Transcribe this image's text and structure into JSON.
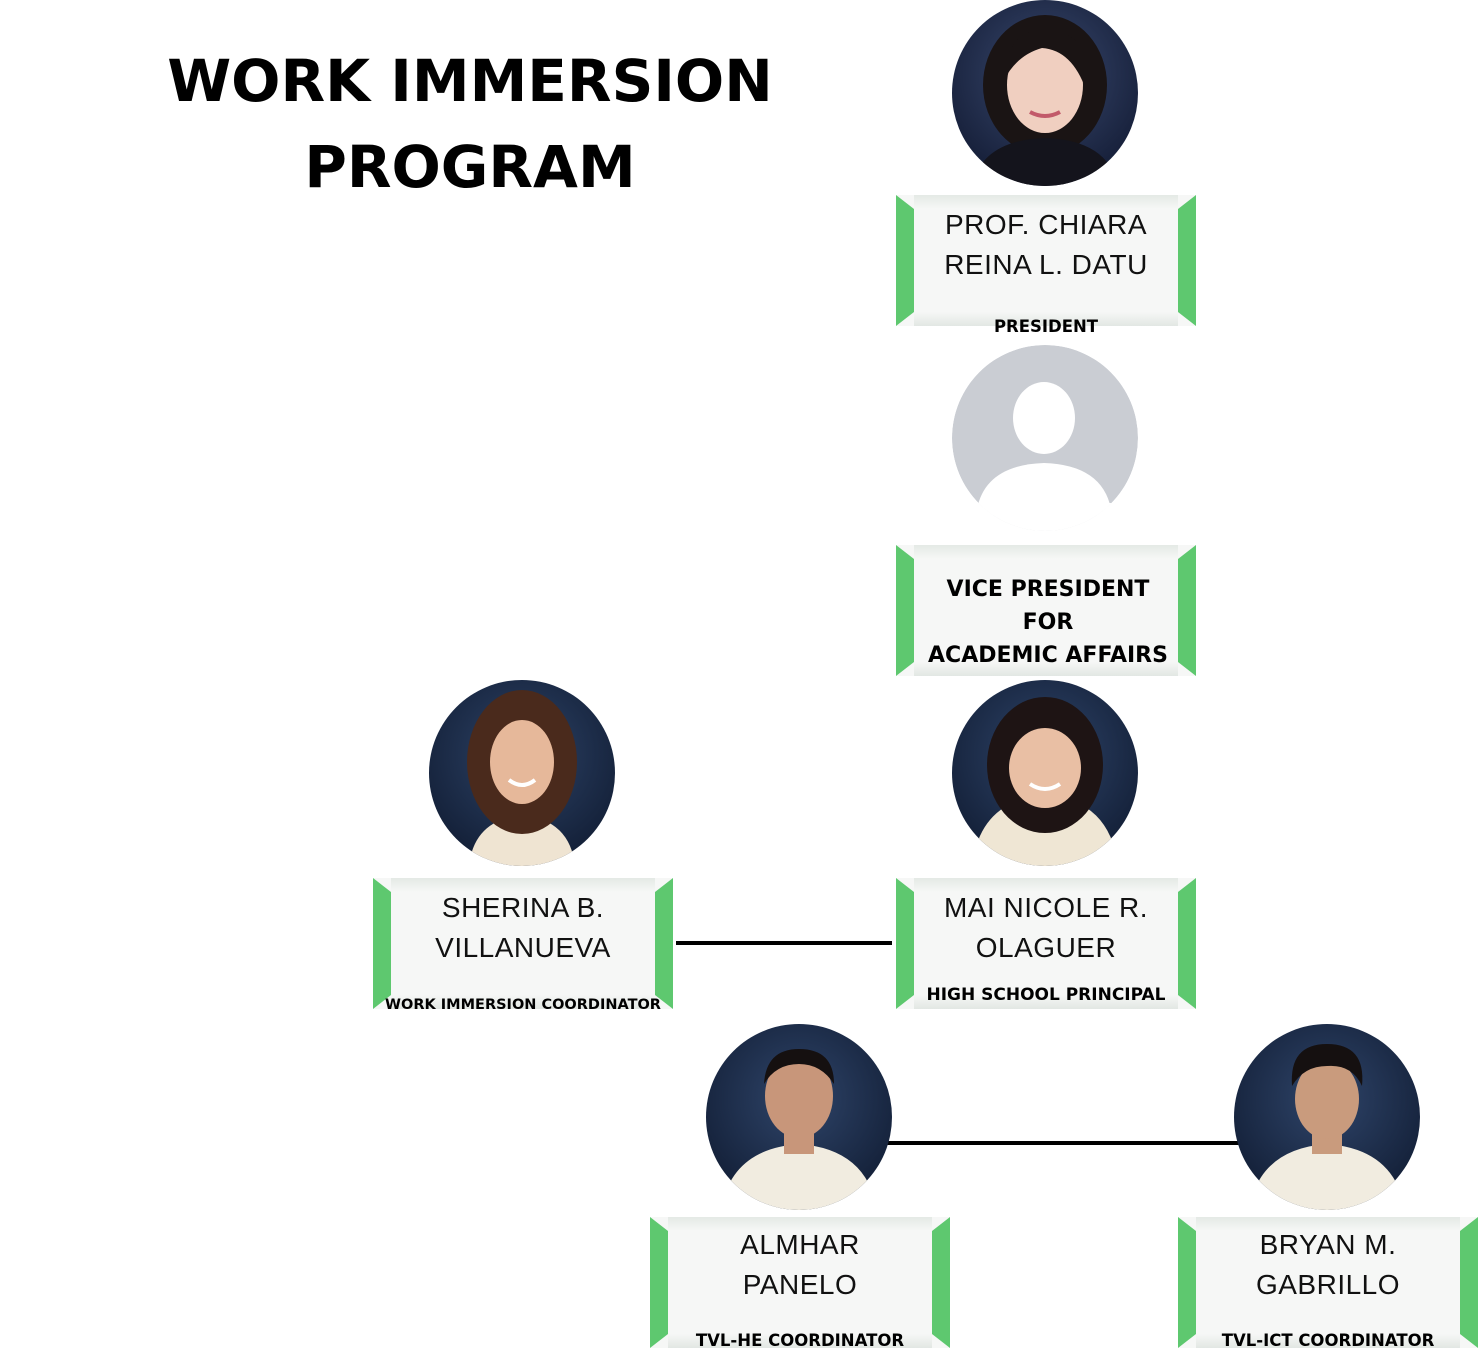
{
  "title": {
    "line1": "WORK IMMERSION",
    "line2": "PROGRAM"
  },
  "colors": {
    "accent_green": "#5ec86f",
    "card_bg": "#f6f7f6",
    "placeholder_gray": "#cacdd3"
  },
  "people": {
    "president": {
      "name_line1": "PROF. CHIARA",
      "name_line2": "REINA L. DATU",
      "role": "PRESIDENT"
    },
    "vp": {
      "role_line1": "VICE PRESIDENT FOR",
      "role_line2": "ACADEMIC AFFAIRS"
    },
    "coordinator": {
      "name_line1": "SHERINA B.",
      "name_line2": "VILLANUEVA",
      "role": "WORK IMMERSION COORDINATOR"
    },
    "principal": {
      "name_line1": "MAI NICOLE R.",
      "name_line2": "OLAGUER",
      "role": "HIGH SCHOOL PRINCIPAL"
    },
    "tvl_he": {
      "name_line1": "ALMHAR",
      "name_line2": "PANELO",
      "role": "TVL-HE COORDINATOR"
    },
    "tvl_ict": {
      "name_line1": "BRYAN M.",
      "name_line2": "GABRILLO",
      "role": "TVL-ICT COORDINATOR"
    }
  }
}
